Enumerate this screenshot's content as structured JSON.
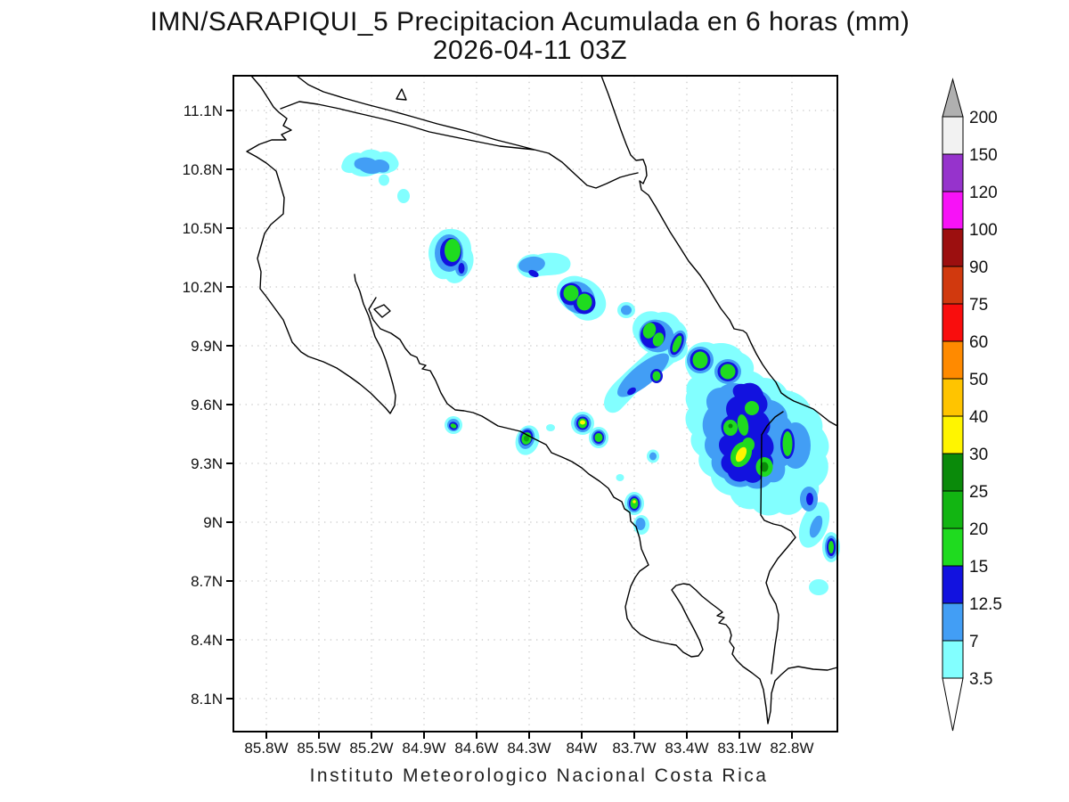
{
  "title": {
    "line1": "IMN/SARAPIQUI_5 Precipitacion Acumulada en 6 horas (mm)",
    "line2": "2026-04-11 03Z"
  },
  "footer": "Instituto Meteorologico Nacional Costa Rica",
  "axes": {
    "x": {
      "labels": [
        "85.8W",
        "85.5W",
        "85.2W",
        "84.9W",
        "84.6W",
        "84.3W",
        "84W",
        "83.7W",
        "83.4W",
        "83.1W",
        "82.8W"
      ]
    },
    "y": {
      "labels": [
        "11.1N",
        "10.8N",
        "10.5N",
        "10.2N",
        "9.9N",
        "9.6N",
        "9.3N",
        "9N",
        "8.7N",
        "8.4N",
        "8.1N"
      ]
    }
  },
  "colorbar": {
    "unit": "mm",
    "labels": [
      "3.5",
      "7",
      "12.5",
      "15",
      "20",
      "25",
      "30",
      "40",
      "50",
      "60",
      "75",
      "90",
      "100",
      "120",
      "150",
      "200"
    ],
    "cell_colors": [
      "#82FFFF",
      "#429EF5",
      "#1212DF",
      "#1FDB1F",
      "#12B512",
      "#0A8A0A",
      "#FFF500",
      "#FFC400",
      "#FF8A00",
      "#F90D0D",
      "#D1390E",
      "#9C0F0F",
      "#F712F7",
      "#9633CC",
      "#F2F2F2"
    ],
    "over_arrow_color": "#B0B0B0",
    "under_arrow_color": "#FFFFFF"
  },
  "map": {
    "region": "Costa Rica",
    "lon_range": [
      "86.0W",
      "82.5W"
    ],
    "lat_range": [
      "8.0N",
      "11.3N"
    ],
    "precip_cells": [
      {
        "lon": "85.2W",
        "lat": "10.84N",
        "max_mm": 12.5
      },
      {
        "lon": "84.75W",
        "lat": "10.37N",
        "max_mm": 20
      },
      {
        "lon": "84.27W",
        "lat": "10.32N",
        "max_mm": 12.5
      },
      {
        "lon": "84.03W",
        "lat": "10.15N",
        "max_mm": 20
      },
      {
        "lon": "83.59W",
        "lat": "9.95N",
        "max_mm": 20
      },
      {
        "lon": "83.32W",
        "lat": "9.83N",
        "max_mm": 20
      },
      {
        "lon": "83.17W",
        "lat": "9.77N",
        "max_mm": 20
      },
      {
        "lon": "84.73W",
        "lat": "9.49N",
        "max_mm": 20
      },
      {
        "lon": "84.32W",
        "lat": "9.43N",
        "max_mm": 25
      },
      {
        "lon": "84.0W",
        "lat": "9.50N",
        "max_mm": 40
      },
      {
        "lon": "83.9W",
        "lat": "9.43N",
        "max_mm": 20
      },
      {
        "lon": "83.09W",
        "lat": "9.35N",
        "max_mm": 40
      },
      {
        "lon": "82.96W",
        "lat": "9.28N",
        "max_mm": 30
      },
      {
        "lon": "82.83W",
        "lat": "9.40N",
        "max_mm": 20
      },
      {
        "lon": "83.7W",
        "lat": "9.10N",
        "max_mm": 30
      },
      {
        "lon": "82.58W",
        "lat": "8.87N",
        "max_mm": 20
      }
    ]
  }
}
